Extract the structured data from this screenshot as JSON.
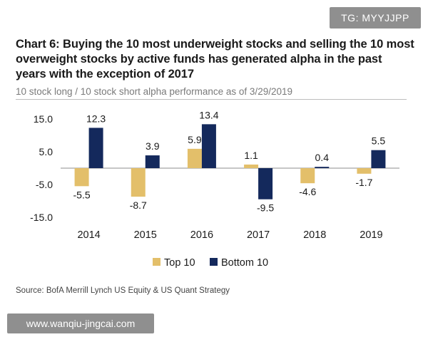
{
  "watermark_top": "TG: MYYJJPP",
  "watermark_bottom": "www.wanqiu-jingcai.com",
  "source": "Source: BofA Merrill Lynch US Equity & US Quant Strategy",
  "colors": {
    "top10": "#e3bf6a",
    "bottom10": "#14295c",
    "text": "#1a1a1a"
  },
  "chart_data": {
    "type": "bar",
    "title": "Chart 6: Buying the 10 most underweight stocks and selling the 10 most overweight stocks by active funds has generated alpha in the past years with the exception of 2017",
    "subtitle": "10 stock long / 10 stock short alpha performance as of 3/29/2019",
    "categories": [
      "2014",
      "2015",
      "2016",
      "2017",
      "2018",
      "2019"
    ],
    "series": [
      {
        "name": "Top 10",
        "values": [
          -5.5,
          -8.7,
          5.9,
          1.1,
          -4.6,
          -1.7
        ]
      },
      {
        "name": "Bottom 10",
        "values": [
          12.3,
          3.9,
          13.4,
          -9.5,
          0.4,
          5.5
        ]
      }
    ],
    "yticks": [
      "15.0",
      "5.0",
      "-5.0",
      "-15.0"
    ],
    "ylim": [
      -15,
      15
    ],
    "grid": false,
    "legend": "bottom-center"
  }
}
